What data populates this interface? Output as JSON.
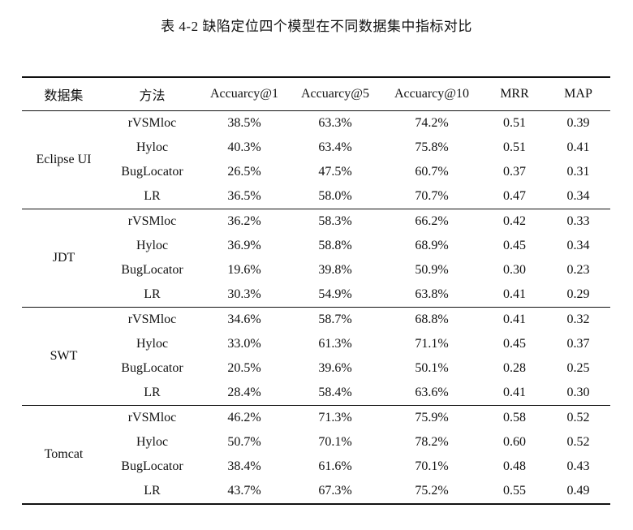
{
  "caption": "表 4-2  缺陷定位四个模型在不同数据集中指标对比",
  "headers": {
    "dataset": "数据集",
    "method": "方法",
    "acc1": "Accuarcy@1",
    "acc5": "Accuarcy@5",
    "acc10": "Accuarcy@10",
    "mrr": "MRR",
    "map": "MAP"
  },
  "groups": [
    {
      "dataset": "Eclipse UI",
      "rows": [
        {
          "method": "rVSMloc",
          "acc1": "38.5%",
          "acc5": "63.3%",
          "acc10": "74.2%",
          "mrr": "0.51",
          "map": "0.39"
        },
        {
          "method": "Hyloc",
          "acc1": "40.3%",
          "acc5": "63.4%",
          "acc10": "75.8%",
          "mrr": "0.51",
          "map": "0.41"
        },
        {
          "method": "BugLocator",
          "acc1": "26.5%",
          "acc5": "47.5%",
          "acc10": "60.7%",
          "mrr": "0.37",
          "map": "0.31"
        },
        {
          "method": "LR",
          "acc1": "36.5%",
          "acc5": "58.0%",
          "acc10": "70.7%",
          "mrr": "0.47",
          "map": "0.34"
        }
      ]
    },
    {
      "dataset": "JDT",
      "rows": [
        {
          "method": "rVSMloc",
          "acc1": "36.2%",
          "acc5": "58.3%",
          "acc10": "66.2%",
          "mrr": "0.42",
          "map": "0.33"
        },
        {
          "method": "Hyloc",
          "acc1": "36.9%",
          "acc5": "58.8%",
          "acc10": "68.9%",
          "mrr": "0.45",
          "map": "0.34"
        },
        {
          "method": "BugLocator",
          "acc1": "19.6%",
          "acc5": "39.8%",
          "acc10": "50.9%",
          "mrr": "0.30",
          "map": "0.23"
        },
        {
          "method": "LR",
          "acc1": "30.3%",
          "acc5": "54.9%",
          "acc10": "63.8%",
          "mrr": "0.41",
          "map": "0.29"
        }
      ]
    },
    {
      "dataset": "SWT",
      "rows": [
        {
          "method": "rVSMloc",
          "acc1": "34.6%",
          "acc5": "58.7%",
          "acc10": "68.8%",
          "mrr": "0.41",
          "map": "0.32"
        },
        {
          "method": "Hyloc",
          "acc1": "33.0%",
          "acc5": "61.3%",
          "acc10": "71.1%",
          "mrr": "0.45",
          "map": "0.37"
        },
        {
          "method": "BugLocator",
          "acc1": "20.5%",
          "acc5": "39.6%",
          "acc10": "50.1%",
          "mrr": "0.28",
          "map": "0.25"
        },
        {
          "method": "LR",
          "acc1": "28.4%",
          "acc5": "58.4%",
          "acc10": "63.6%",
          "mrr": "0.41",
          "map": "0.30"
        }
      ]
    },
    {
      "dataset": "Tomcat",
      "rows": [
        {
          "method": "rVSMloc",
          "acc1": "46.2%",
          "acc5": "71.3%",
          "acc10": "75.9%",
          "mrr": "0.58",
          "map": "0.52"
        },
        {
          "method": "Hyloc",
          "acc1": "50.7%",
          "acc5": "70.1%",
          "acc10": "78.2%",
          "mrr": "0.60",
          "map": "0.52"
        },
        {
          "method": "BugLocator",
          "acc1": "38.4%",
          "acc5": "61.6%",
          "acc10": "70.1%",
          "mrr": "0.48",
          "map": "0.43"
        },
        {
          "method": "LR",
          "acc1": "43.7%",
          "acc5": "67.3%",
          "acc10": "75.2%",
          "mrr": "0.55",
          "map": "0.49"
        }
      ]
    }
  ]
}
